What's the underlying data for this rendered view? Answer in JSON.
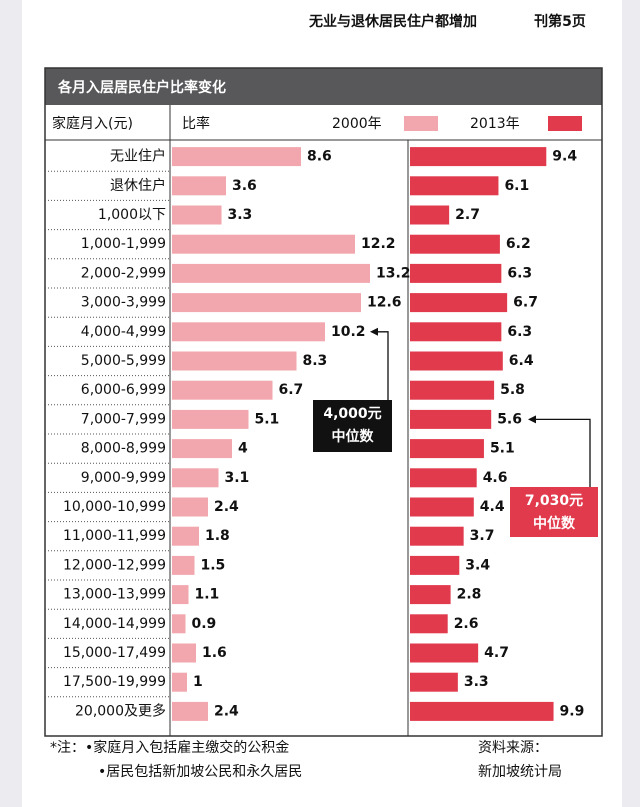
{
  "page": {
    "headline": "无业与退休居民住户都增加",
    "page_ref": "刊第5页"
  },
  "chart_data": {
    "type": "bar",
    "title": "各月入层居民住户比率变化",
    "x_label": "家庭月入(元)",
    "y_label": "比率",
    "categories": [
      "无业住户",
      "退休住户",
      "1,000以下",
      "1,000-1,999",
      "2,000-2,999",
      "3,000-3,999",
      "4,000-4,999",
      "5,000-5,999",
      "6,000-6,999",
      "7,000-7,999",
      "8,000-8,999",
      "9,000-9,999",
      "10,000-10,999",
      "11,000-11,999",
      "12,000-12,999",
      "13,000-13,999",
      "14,000-14,999",
      "15,000-17,499",
      "17,500-19,999",
      "20,000及更多"
    ],
    "series": [
      {
        "name": "2000年",
        "color": "#f2a7ae",
        "values": [
          8.6,
          3.6,
          3.3,
          12.2,
          13.2,
          12.6,
          10.2,
          8.3,
          6.7,
          5.1,
          4,
          3.1,
          2.4,
          1.8,
          1.5,
          1.1,
          0.9,
          1.6,
          1,
          2.4
        ]
      },
      {
        "name": "2013年",
        "color": "#e03a4c",
        "values": [
          9.4,
          6.1,
          2.7,
          6.2,
          6.3,
          6.7,
          6.3,
          6.4,
          5.8,
          5.6,
          5.1,
          4.6,
          4.4,
          3.7,
          3.4,
          2.8,
          2.6,
          4.7,
          3.3,
          9.9
        ]
      }
    ],
    "annotations": [
      {
        "lines": [
          "4,000元",
          "中位数"
        ],
        "color": "#111111"
      },
      {
        "lines": [
          "7,030元",
          "中位数"
        ],
        "color": "#e03a4c"
      }
    ],
    "notes": [
      "*注：•家庭月入包括雇主缴交的公积金",
      "•居民包括新加坡公民和永久居民"
    ],
    "source": [
      "资料来源：",
      "新加坡统计局"
    ]
  }
}
